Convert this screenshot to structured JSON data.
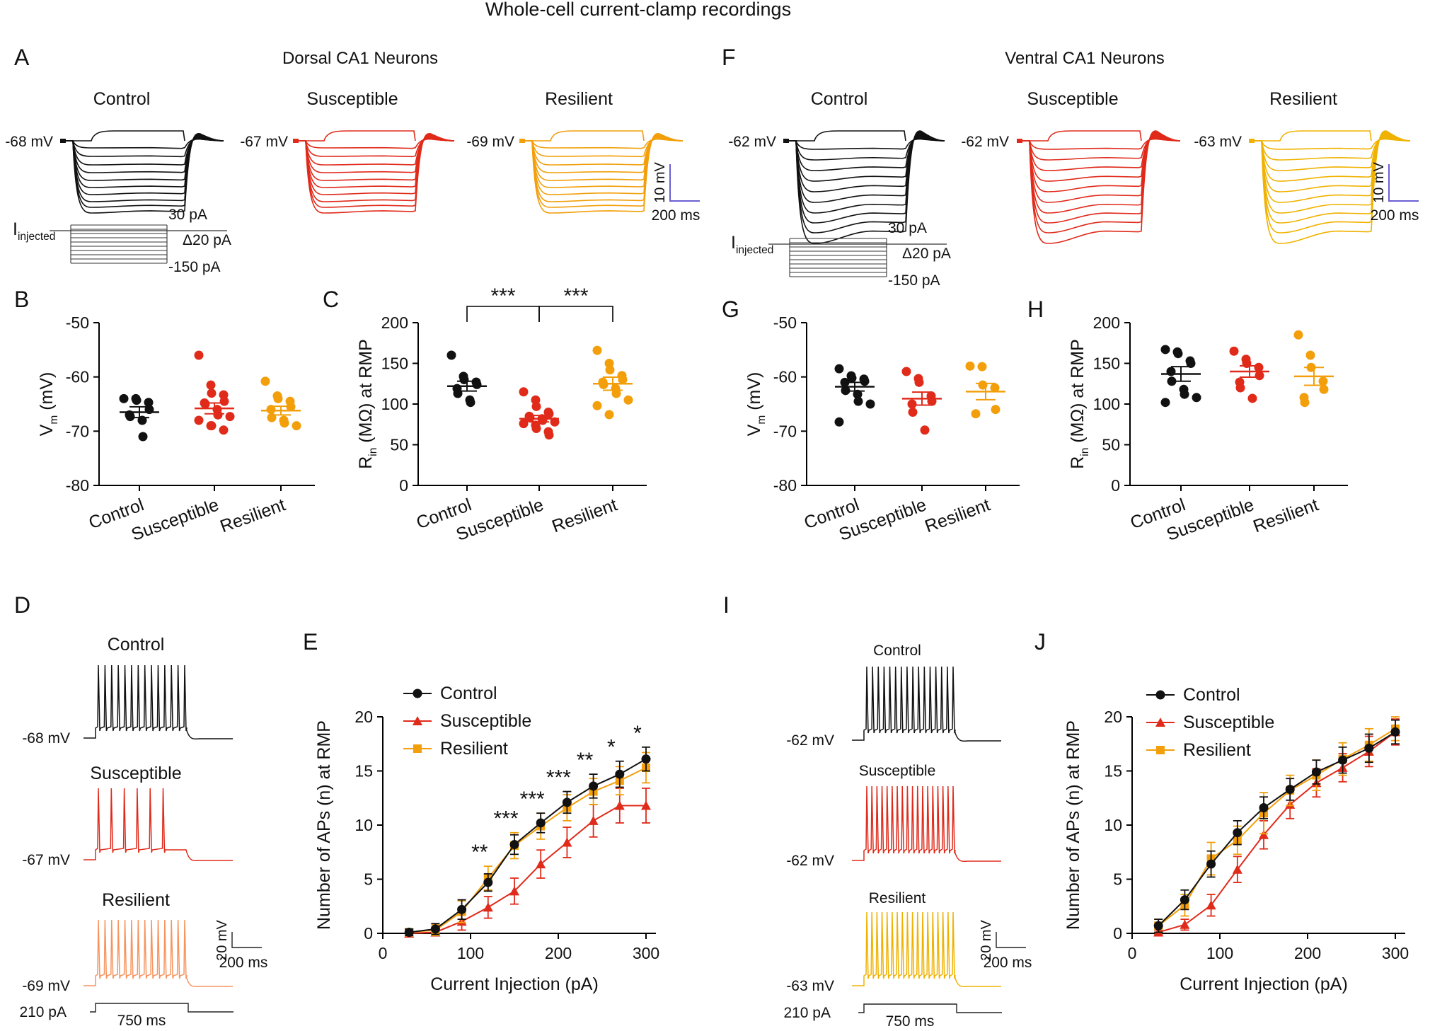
{
  "title": "Whole-cell current-clamp recordings",
  "colors": {
    "control": "#111111",
    "susceptible": "#e02a1a",
    "resilient": "#f29f0b",
    "resilient_light": "#f7945e",
    "resilient_gold": "#f0b200",
    "scalebar": "#6b5fd3"
  },
  "panels": {
    "A": {
      "letter": "A",
      "heading": "Dorsal CA1 Neurons",
      "groups": [
        "Control",
        "Susceptible",
        "Resilient"
      ],
      "vrest": [
        "-68 mV",
        "-67 mV",
        "-69 mV"
      ],
      "iinj": {
        "main": "I",
        "sub": "injected"
      },
      "steps": {
        "top": "30 pA",
        "delta": "Δ20 pA",
        "bottom": "-150 pA"
      },
      "scale": {
        "v": "10 mV",
        "t": "200 ms"
      }
    },
    "F": {
      "letter": "F",
      "heading": "Ventral CA1 Neurons",
      "groups": [
        "Control",
        "Susceptible",
        "Resilient"
      ],
      "vrest": [
        "-62 mV",
        "-62 mV",
        "-63 mV"
      ],
      "iinj": {
        "main": "I",
        "sub": "injected"
      },
      "steps": {
        "top": "30 pA",
        "delta": "Δ20 pA",
        "bottom": "-150 pA"
      },
      "scale": {
        "v": "10 mV",
        "t": "200 ms"
      }
    },
    "D": {
      "letter": "D",
      "groups": [
        "Control",
        "Susceptible",
        "Resilient"
      ],
      "vrest": [
        "-68 mV",
        "-67 mV",
        "-69 mV"
      ],
      "stim": {
        "amp": "210 pA",
        "dur": "750 ms"
      },
      "scale": {
        "v": "20 mV",
        "t": "200 ms"
      }
    },
    "I": {
      "letter": "I",
      "groups": [
        "Control",
        "Susceptible",
        "Resilient"
      ],
      "vrest": [
        "-62 mV",
        "-62 mV",
        "-63 mV"
      ],
      "stim": {
        "amp": "210 pA",
        "dur": "750 ms"
      },
      "scale": {
        "v": "20 mV",
        "t": "200 ms"
      }
    }
  },
  "chart_data": [
    {
      "id": "B",
      "letter": "B",
      "type": "scatter",
      "ylabel_main": "V",
      "ylabel_sub": "m",
      "ylabel_rest": " (mV)",
      "ylim": [
        -80,
        -50
      ],
      "yticks": [
        -80,
        -70,
        -60,
        -50
      ],
      "categories": [
        "Control",
        "Susceptible",
        "Resilient"
      ],
      "groups": [
        {
          "name": "Control",
          "color": "#111111",
          "mean": -66.5,
          "sem": 1.0,
          "points": [
            -64,
            -64,
            -64.3,
            -64.7,
            -66,
            -67,
            -67.3,
            -68,
            -71
          ]
        },
        {
          "name": "Susceptible",
          "color": "#e02a1a",
          "mean": -65.8,
          "sem": 1.0,
          "points": [
            -56,
            -61.5,
            -63,
            -63.3,
            -64.5,
            -64.8,
            -65,
            -66,
            -67,
            -67.3,
            -68,
            -69,
            -69,
            -69.8
          ]
        },
        {
          "name": "Resilient",
          "color": "#f29f0b",
          "mean": -66.2,
          "sem": 0.8,
          "points": [
            -60.8,
            -63.5,
            -64,
            -64.5,
            -65.5,
            -66,
            -67.5,
            -68,
            -68.5,
            -69
          ]
        }
      ]
    },
    {
      "id": "C",
      "letter": "C",
      "type": "scatter",
      "ylabel_main": "R",
      "ylabel_sub": "in",
      "ylabel_rest": " (MΩ) at RMP",
      "ylim": [
        0,
        200
      ],
      "yticks": [
        0,
        50,
        100,
        150,
        200
      ],
      "categories": [
        "Control",
        "Susceptible",
        "Resilient"
      ],
      "groups": [
        {
          "name": "Control",
          "color": "#111111",
          "mean": 122,
          "sem": 6,
          "points": [
            160,
            134,
            130,
            127,
            124,
            119,
            113,
            105,
            102
          ]
        },
        {
          "name": "Susceptible",
          "color": "#e02a1a",
          "mean": 82,
          "sem": 4,
          "points": [
            115,
            105,
            97,
            90,
            88,
            85,
            83,
            82,
            80,
            78,
            76,
            74,
            70,
            66,
            62
          ]
        },
        {
          "name": "Resilient",
          "color": "#f29f0b",
          "mean": 125,
          "sem": 8,
          "points": [
            166,
            150,
            142,
            135,
            130,
            127,
            124,
            119,
            113,
            105,
            98,
            87
          ]
        }
      ],
      "significance": [
        {
          "pair": [
            0,
            1
          ],
          "label": "***"
        },
        {
          "pair": [
            1,
            2
          ],
          "label": "***"
        }
      ]
    },
    {
      "id": "G",
      "letter": "G",
      "type": "scatter",
      "ylabel_main": "V",
      "ylabel_sub": "m",
      "ylabel_rest": " (mV)",
      "ylim": [
        -80,
        -50
      ],
      "yticks": [
        -80,
        -70,
        -60,
        -50
      ],
      "categories": [
        "Control",
        "Susceptible",
        "Resilient"
      ],
      "groups": [
        {
          "name": "Control",
          "color": "#111111",
          "mean": -61.8,
          "sem": 0.8,
          "points": [
            -58.5,
            -59.8,
            -60.2,
            -60.4,
            -60.8,
            -61,
            -62.5,
            -63.2,
            -64.5,
            -65,
            -68.3
          ]
        },
        {
          "name": "Susceptible",
          "color": "#e02a1a",
          "mean": -64,
          "sem": 1.2,
          "points": [
            -59,
            -60.3,
            -61,
            -63.5,
            -64.5,
            -65,
            -66.5,
            -69.8
          ]
        },
        {
          "name": "Resilient",
          "color": "#f29f0b",
          "mean": -62.7,
          "sem": 1.5,
          "points": [
            -58,
            -58.1,
            -61.5,
            -62,
            -66,
            -66.8
          ]
        }
      ]
    },
    {
      "id": "H",
      "letter": "H",
      "type": "scatter",
      "ylabel_main": "R",
      "ylabel_sub": "in",
      "ylabel_rest": " (MΩ) at RMP",
      "ylim": [
        0,
        200
      ],
      "yticks": [
        0,
        50,
        100,
        150,
        200
      ],
      "categories": [
        "Control",
        "Susceptible",
        "Resilient"
      ],
      "groups": [
        {
          "name": "Control",
          "color": "#111111",
          "mean": 137,
          "sem": 9,
          "points": [
            167,
            164,
            162,
            153,
            150,
            140,
            128,
            118,
            112,
            108,
            102
          ]
        },
        {
          "name": "Susceptible",
          "color": "#e02a1a",
          "mean": 140,
          "sem": 7,
          "points": [
            165,
            155,
            150,
            145,
            135,
            127,
            120,
            107
          ]
        },
        {
          "name": "Resilient",
          "color": "#f29f0b",
          "mean": 134,
          "sem": 11,
          "points": [
            185,
            160,
            145,
            128,
            118,
            108,
            102
          ]
        }
      ]
    },
    {
      "id": "E",
      "letter": "E",
      "type": "line",
      "xlabel": "Current Injection (pA)",
      "ylabel": "Number of APs (n) at RMP",
      "xlim": [
        0,
        300
      ],
      "xticks": [
        0,
        100,
        200,
        300
      ],
      "ylim": [
        0,
        20
      ],
      "yticks": [
        0,
        5,
        10,
        15,
        20
      ],
      "x": [
        30,
        60,
        90,
        120,
        150,
        180,
        210,
        240,
        270,
        300
      ],
      "series": [
        {
          "name": "Control",
          "color": "#111111",
          "marker": "circle",
          "values": [
            0.1,
            0.4,
            2.2,
            4.7,
            8.2,
            10.2,
            12.1,
            13.6,
            14.7,
            16.1
          ],
          "err": [
            0.3,
            0.5,
            0.9,
            0.8,
            0.9,
            0.9,
            1.0,
            1.1,
            1.2,
            1.1
          ]
        },
        {
          "name": "Susceptible",
          "color": "#e02a1a",
          "marker": "triangle",
          "values": [
            0,
            0.1,
            1.1,
            2.4,
            3.9,
            6.4,
            8.4,
            10.4,
            11.8,
            11.8
          ],
          "err": [
            0,
            0.3,
            0.8,
            1.0,
            1.2,
            1.3,
            1.4,
            1.5,
            1.6,
            1.6
          ]
        },
        {
          "name": "Resilient",
          "color": "#f29f0b",
          "marker": "square",
          "values": [
            0.1,
            0.3,
            2.0,
            5.1,
            8.1,
            9.9,
            11.6,
            13.1,
            14.1,
            15.3
          ],
          "err": [
            0.3,
            0.5,
            1.0,
            1.1,
            1.2,
            1.2,
            1.2,
            1.2,
            1.3,
            1.4
          ]
        }
      ],
      "annotations": [
        {
          "x": 120,
          "label": "**"
        },
        {
          "x": 150,
          "label": "***"
        },
        {
          "x": 180,
          "label": "***"
        },
        {
          "x": 210,
          "label": "***"
        },
        {
          "x": 240,
          "label": "**"
        },
        {
          "x": 270,
          "label": "*"
        },
        {
          "x": 300,
          "label": "*"
        }
      ]
    },
    {
      "id": "J",
      "letter": "J",
      "type": "line",
      "xlabel": "Current Injection (pA)",
      "ylabel": "Number of APs (n) at RMP",
      "xlim": [
        0,
        300
      ],
      "xticks": [
        0,
        100,
        200,
        300
      ],
      "ylim": [
        0,
        20
      ],
      "yticks": [
        0,
        5,
        10,
        15,
        20
      ],
      "x": [
        30,
        60,
        90,
        120,
        150,
        180,
        210,
        240,
        270,
        300
      ],
      "series": [
        {
          "name": "Control",
          "color": "#111111",
          "marker": "circle",
          "values": [
            0.7,
            3.1,
            6.4,
            9.3,
            11.6,
            13.3,
            14.9,
            16.0,
            17.1,
            18.6
          ],
          "err": [
            0.6,
            0.9,
            1.2,
            1.1,
            1.0,
            1.0,
            1.1,
            1.2,
            1.3,
            1.1
          ]
        },
        {
          "name": "Susceptible",
          "color": "#e02a1a",
          "marker": "triangle",
          "values": [
            0.1,
            0.8,
            2.6,
            5.9,
            9.1,
            11.9,
            13.9,
            15.3,
            16.8,
            18.6
          ],
          "err": [
            0.2,
            0.5,
            1.0,
            1.2,
            1.3,
            1.3,
            1.3,
            1.3,
            1.4,
            1.2
          ]
        },
        {
          "name": "Resilient",
          "color": "#f29f0b",
          "marker": "square",
          "values": [
            0.7,
            2.6,
            6.9,
            8.6,
            11.1,
            13.2,
            14.6,
            16.1,
            17.4,
            18.9
          ],
          "err": [
            0.6,
            1.0,
            1.5,
            1.3,
            1.9,
            1.4,
            1.4,
            1.5,
            1.5,
            1.1
          ]
        }
      ]
    }
  ]
}
